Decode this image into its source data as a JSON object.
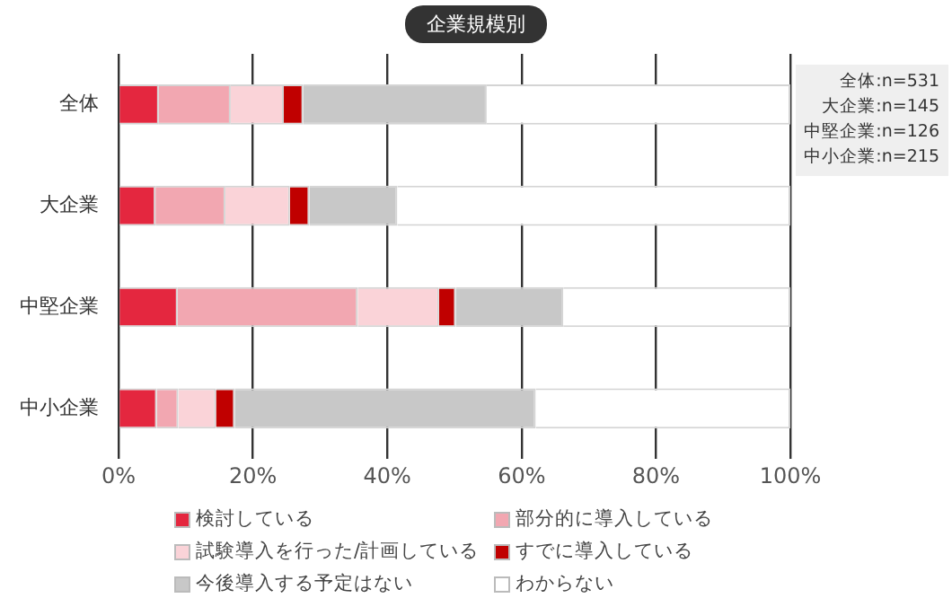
{
  "chart_data": {
    "type": "bar",
    "orientation": "horizontal",
    "stacked": true,
    "title": "企業規模別",
    "categories": [
      "全体",
      "大企業",
      "中堅企業",
      "中小企業"
    ],
    "series": [
      {
        "name": "検討している",
        "color": "#e4273f",
        "values": [
          6.0,
          5.5,
          8.8,
          5.7
        ]
      },
      {
        "name": "部分的に導入している",
        "color": "#f2a7b1",
        "values": [
          10.7,
          10.4,
          26.8,
          3.2
        ]
      },
      {
        "name": "試験導入を行った/計画している",
        "color": "#fad3d8",
        "values": [
          7.9,
          9.6,
          12.1,
          5.6
        ]
      },
      {
        "name": "すでに導入している",
        "color": "#c00000",
        "values": [
          2.9,
          2.9,
          2.5,
          2.8
        ]
      },
      {
        "name": "今後導入する予定はない",
        "color": "#c8c8c8",
        "values": [
          27.3,
          13.1,
          16.0,
          44.8
        ]
      },
      {
        "name": "わからない",
        "color": "#ffffff",
        "values": [
          45.2,
          58.5,
          33.8,
          37.9
        ]
      }
    ],
    "xlim": [
      0,
      100
    ],
    "xticks": [
      {
        "value": 0,
        "label": "0%"
      },
      {
        "value": 20,
        "label": "20%"
      },
      {
        "value": 40,
        "label": "40%"
      },
      {
        "value": 60,
        "label": "60%"
      },
      {
        "value": 80,
        "label": "80%"
      },
      {
        "value": 100,
        "label": "100%"
      }
    ],
    "grid": "x",
    "legend": "bottom",
    "annotations": [
      "全体:n=531",
      "大企業:n=145",
      "中堅企業:n=126",
      "中小企業:n=215"
    ]
  }
}
